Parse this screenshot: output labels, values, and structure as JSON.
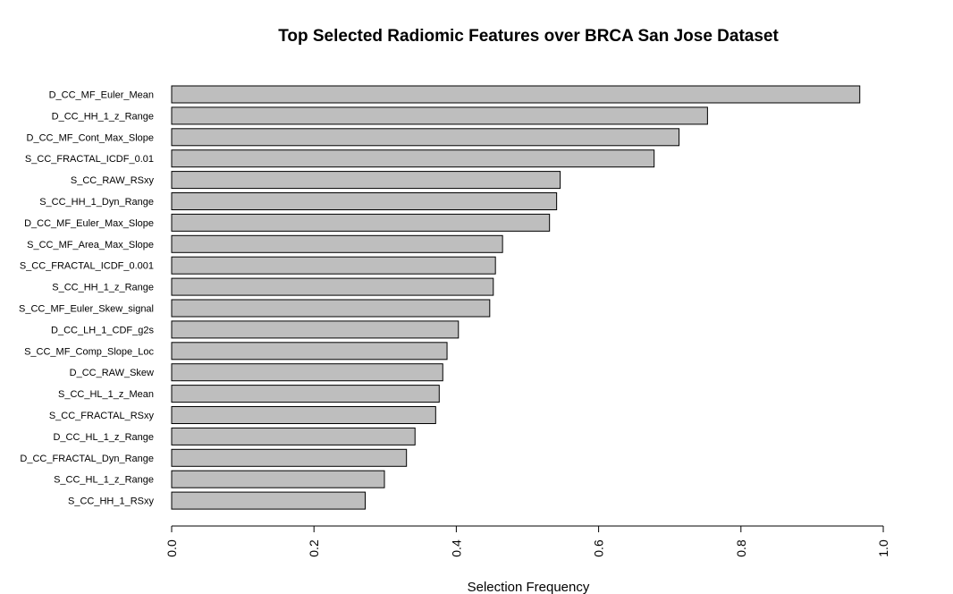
{
  "chart_data": {
    "type": "bar",
    "orientation": "horizontal",
    "title": "Top Selected Radiomic Features over BRCA San Jose Dataset",
    "xlabel": "Selection Frequency",
    "xlim": [
      0,
      1
    ],
    "xticks": [
      "0.0",
      "0.2",
      "0.4",
      "0.6",
      "0.8",
      "1.0"
    ],
    "bar_color": "#bebebe",
    "categories": [
      "D_CC_MF_Euler_Mean",
      "D_CC_HH_1_z_Range",
      "D_CC_MF_Cont_Max_Slope",
      "S_CC_FRACTAL_ICDF_0.01",
      "S_CC_RAW_RSxy",
      "S_CC_HH_1_Dyn_Range",
      "D_CC_MF_Euler_Max_Slope",
      "S_CC_MF_Area_Max_Slope",
      "S_CC_FRACTAL_ICDF_0.001",
      "S_CC_HH_1_z_Range",
      "S_CC_MF_Euler_Skew_signal",
      "D_CC_LH_1_CDF_g2s",
      "S_CC_MF_Comp_Slope_Loc",
      "D_CC_RAW_Skew",
      "S_CC_HL_1_z_Mean",
      "S_CC_FRACTAL_RSxy",
      "D_CC_HL_1_z_Range",
      "D_CC_FRACTAL_Dyn_Range",
      "S_CC_HL_1_z_Range",
      "S_CC_HH_1_RSxy"
    ],
    "values": [
      0.967,
      0.753,
      0.713,
      0.678,
      0.546,
      0.541,
      0.531,
      0.465,
      0.455,
      0.452,
      0.447,
      0.403,
      0.387,
      0.381,
      0.376,
      0.371,
      0.342,
      0.33,
      0.299,
      0.272
    ]
  }
}
